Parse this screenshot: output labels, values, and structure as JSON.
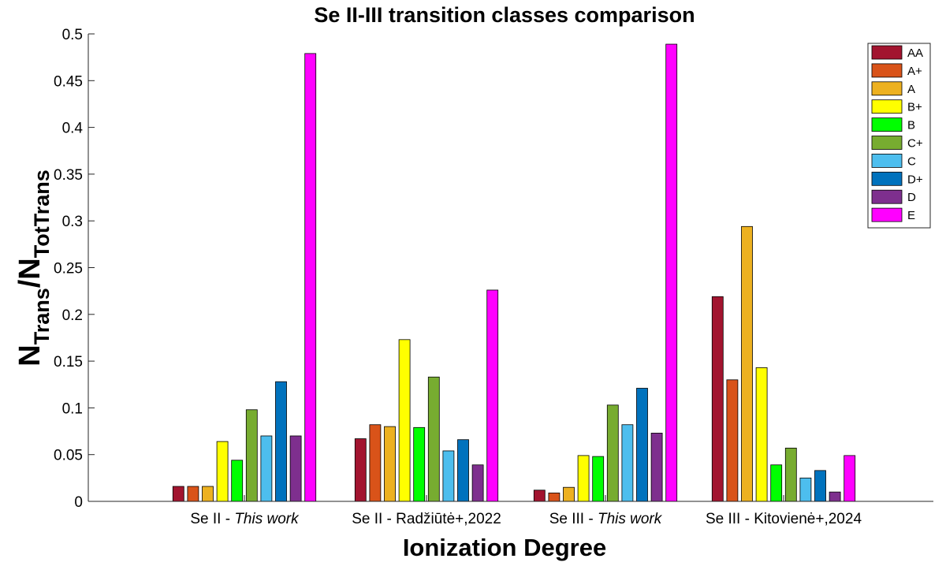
{
  "chart_data": {
    "type": "bar",
    "title": "Se II-III transition classes comparison",
    "xlabel": "Ionization Degree",
    "ylabel": {
      "n1": "N",
      "sub1": "Trans",
      "slash": "/N",
      "sub2": "TotTrans"
    },
    "ylim": [
      0,
      0.5
    ],
    "yticks": [
      "0",
      "0.05",
      "0.1",
      "0.15",
      "0.2",
      "0.25",
      "0.3",
      "0.35",
      "0.4",
      "0.45",
      "0.5"
    ],
    "ytick_values": [
      0,
      0.05,
      0.1,
      0.15,
      0.2,
      0.25,
      0.3,
      0.35,
      0.4,
      0.45,
      0.5
    ],
    "categories": [
      {
        "prefix": "Se II - ",
        "italic": "This work"
      },
      {
        "prefix": "Se II - Radžiūtė+,2022",
        "italic": ""
      },
      {
        "prefix": "Se III - ",
        "italic": "This work"
      },
      {
        "prefix": "Se III - Kitovienė+,2024",
        "italic": ""
      }
    ],
    "legend_position": "top-right",
    "grid": false,
    "series": [
      {
        "name": "AA",
        "color": "#A2142F",
        "values": [
          0.016,
          0.067,
          0.012,
          0.219
        ]
      },
      {
        "name": "A+",
        "color": "#D95319",
        "values": [
          0.016,
          0.082,
          0.009,
          0.13
        ]
      },
      {
        "name": "A",
        "color": "#EDB120",
        "values": [
          0.016,
          0.08,
          0.015,
          0.294
        ]
      },
      {
        "name": "B+",
        "color": "#FFFF00",
        "values": [
          0.064,
          0.173,
          0.049,
          0.143
        ]
      },
      {
        "name": "B",
        "color": "#00FF00",
        "values": [
          0.044,
          0.079,
          0.048,
          0.039
        ]
      },
      {
        "name": "C+",
        "color": "#77AC30",
        "values": [
          0.098,
          0.133,
          0.103,
          0.057
        ]
      },
      {
        "name": "C",
        "color": "#4DBEEE",
        "values": [
          0.07,
          0.054,
          0.082,
          0.025
        ]
      },
      {
        "name": "D+",
        "color": "#0072BD",
        "values": [
          0.128,
          0.066,
          0.121,
          0.033
        ]
      },
      {
        "name": "D",
        "color": "#7E2F8E",
        "values": [
          0.07,
          0.039,
          0.073,
          0.01
        ]
      },
      {
        "name": "E",
        "color": "#FF00FF",
        "values": [
          0.479,
          0.226,
          0.489,
          0.049
        ]
      }
    ]
  }
}
